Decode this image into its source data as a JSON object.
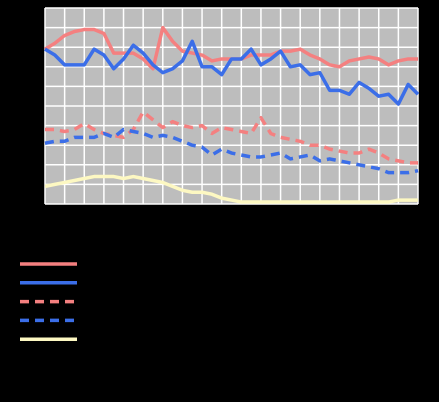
{
  "chart_data": {
    "type": "line",
    "x": [
      0,
      0.5,
      1,
      1.5,
      2,
      2.5,
      3,
      3.5,
      4,
      4.5,
      5,
      5.5,
      6,
      6.5,
      7,
      7.5,
      8,
      8.5,
      9,
      9.5,
      10,
      10.5,
      11,
      11.5,
      12,
      12.5,
      13,
      13.5,
      14,
      14.5,
      15,
      15.5,
      16,
      16.5,
      17,
      17.5,
      18,
      18.5,
      19
    ],
    "xlim": [
      0,
      19
    ],
    "xticks": [
      0,
      1,
      2,
      3,
      4,
      5,
      6,
      7,
      8,
      9,
      10,
      11,
      12,
      13,
      14,
      15,
      16,
      17,
      18,
      19
    ],
    "ylim": [
      0,
      10
    ],
    "yticks": [
      0,
      1,
      2,
      3,
      4,
      5,
      6,
      7,
      8,
      9,
      10
    ],
    "grid": true,
    "series": [
      {
        "color": "#f48080",
        "dashed": false,
        "values": [
          7.9,
          8.2,
          8.6,
          8.8,
          8.9,
          8.9,
          8.7,
          7.7,
          7.7,
          7.7,
          7.4,
          6.9,
          9.0,
          8.3,
          7.8,
          7.7,
          7.6,
          7.3,
          7.4,
          7.4,
          7.4,
          7.6,
          7.6,
          7.6,
          7.8,
          7.8,
          7.9,
          7.6,
          7.4,
          7.1,
          7.0,
          7.3,
          7.4,
          7.5,
          7.4,
          7.1,
          7.3,
          7.4,
          7.4
        ]
      },
      {
        "color": "#3b6ee8",
        "dashed": false,
        "values": [
          7.9,
          7.6,
          7.1,
          7.1,
          7.1,
          7.9,
          7.6,
          6.9,
          7.4,
          8.1,
          7.7,
          7.1,
          6.7,
          6.9,
          7.3,
          8.3,
          7.0,
          7.0,
          6.6,
          7.4,
          7.4,
          7.9,
          7.1,
          7.4,
          7.8,
          7.0,
          7.1,
          6.6,
          6.7,
          5.8,
          5.8,
          5.6,
          6.2,
          5.9,
          5.5,
          5.6,
          5.1,
          6.1,
          5.6
        ]
      },
      {
        "color": "#f48080",
        "dashed": true,
        "values": [
          3.8,
          3.8,
          3.7,
          3.8,
          4.1,
          3.8,
          3.6,
          3.5,
          3.4,
          3.8,
          4.7,
          4.3,
          3.9,
          4.2,
          4.0,
          3.9,
          4.0,
          3.6,
          3.9,
          3.8,
          3.7,
          3.6,
          4.4,
          3.6,
          3.4,
          3.3,
          3.2,
          3.0,
          3.0,
          2.8,
          2.7,
          2.6,
          2.6,
          2.8,
          2.6,
          2.3,
          2.2,
          2.1,
          2.1
        ]
      },
      {
        "color": "#3b6ee8",
        "dashed": true,
        "values": [
          3.1,
          3.2,
          3.2,
          3.4,
          3.4,
          3.4,
          3.6,
          3.4,
          3.8,
          3.7,
          3.6,
          3.4,
          3.5,
          3.4,
          3.2,
          3.0,
          2.9,
          2.5,
          2.8,
          2.6,
          2.5,
          2.4,
          2.4,
          2.5,
          2.6,
          2.3,
          2.4,
          2.5,
          2.2,
          2.3,
          2.2,
          2.1,
          2.0,
          1.9,
          1.8,
          1.6,
          1.6,
          1.6,
          1.7
        ]
      },
      {
        "color": "#fdf8c2",
        "dashed": false,
        "values": [
          0.9,
          1.0,
          1.1,
          1.2,
          1.3,
          1.4,
          1.4,
          1.4,
          1.3,
          1.4,
          1.3,
          1.2,
          1.1,
          0.9,
          0.7,
          0.6,
          0.6,
          0.5,
          0.3,
          0.2,
          0.1,
          0.1,
          0.1,
          0.1,
          0.1,
          0.1,
          0.1,
          0.1,
          0.1,
          0.1,
          0.1,
          0.1,
          0.1,
          0.1,
          0.1,
          0.1,
          0.2,
          0.2,
          0.2
        ]
      }
    ]
  }
}
